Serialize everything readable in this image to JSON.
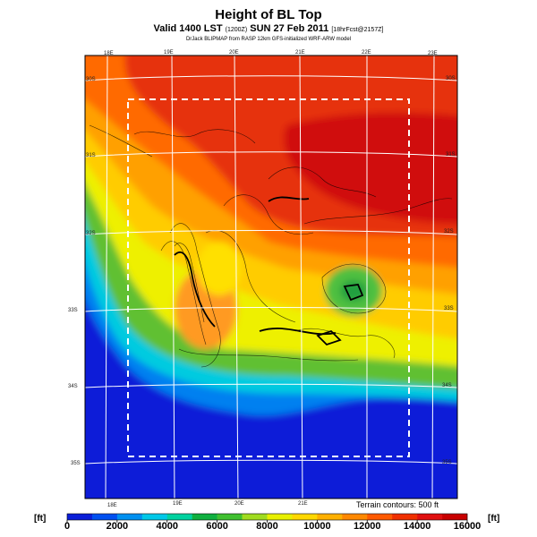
{
  "title": "Height of BL Top",
  "subtitle_main": "Valid 1400 LST",
  "subtitle_time_code": "(1200Z)",
  "subtitle_date": "SUN 27 Feb 2011",
  "subtitle_run": "[18hrFcst@2157Z]",
  "credit": "DrJack BLIPMAP from RASP 12km GFS-initialized WRF-ARW model",
  "terrain_note": "Terrain contours: 500 ft",
  "unit_label": "[ft]",
  "lon_labels_top": [
    "18E",
    "19E",
    "20E",
    "21E",
    "22E",
    "23E"
  ],
  "lon_labels_bottom": [
    "18E",
    "19E",
    "20E",
    "21E"
  ],
  "lat_labels_left": [
    "30S",
    "31S",
    "32S",
    "33S",
    "34S",
    "35S"
  ],
  "lat_labels_right": [
    "30S",
    "31S",
    "32S",
    "33S",
    "34S",
    "35S"
  ],
  "colorbar": {
    "ticks": [
      "0",
      "2000",
      "4000",
      "6000",
      "8000",
      "10000",
      "12000",
      "14000",
      "16000"
    ],
    "colors": [
      "#0a1ed8",
      "#0050f0",
      "#0090f0",
      "#00c8e8",
      "#00d2a0",
      "#10b040",
      "#40c030",
      "#a0dc20",
      "#e8f000",
      "#ffd800",
      "#ffb000",
      "#ff8800",
      "#ff5a00",
      "#f03000",
      "#e01010",
      "#c80000"
    ]
  }
}
